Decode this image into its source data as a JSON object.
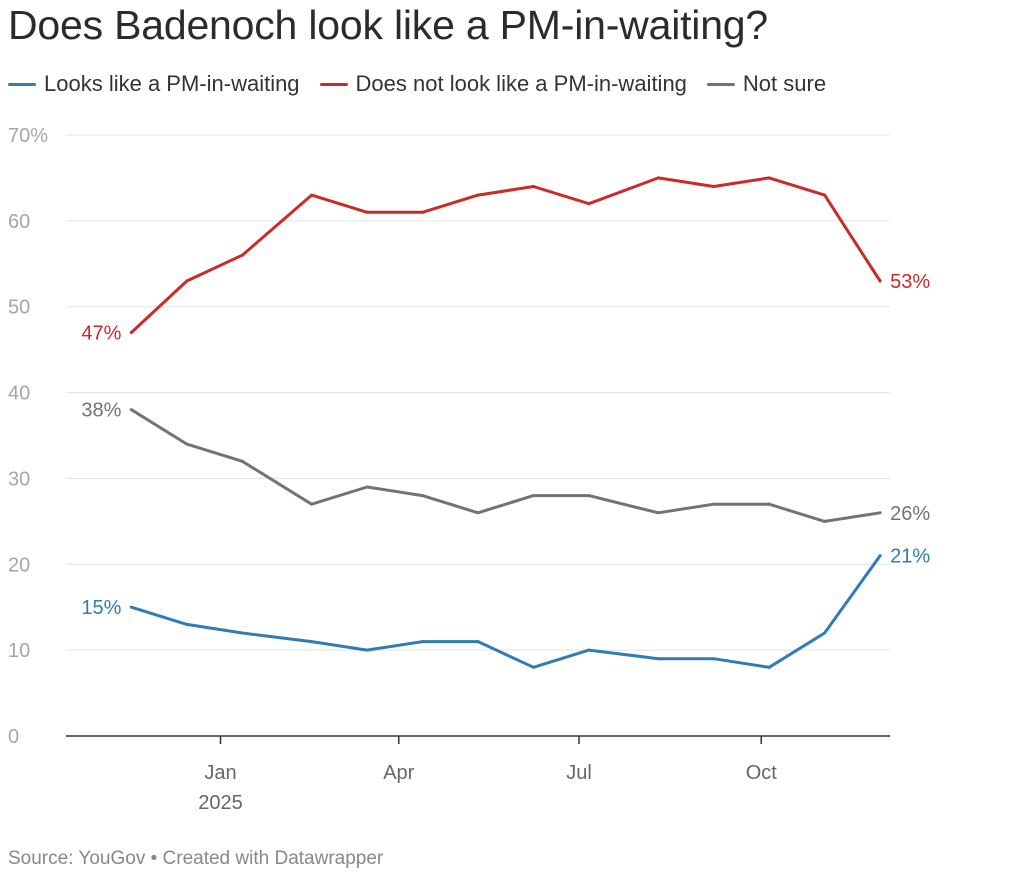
{
  "title": "Does Badenoch look like a PM-in-waiting?",
  "footer": "Source: YouGov • Created with Datawrapper",
  "chart_data": {
    "type": "line",
    "title": "Does Badenoch look like a PM-in-waiting?",
    "x": [
      "2024-11-17",
      "2024-12-15",
      "2025-01-12",
      "2025-02-16",
      "2025-03-16",
      "2025-04-13",
      "2025-05-11",
      "2025-06-08",
      "2025-07-06",
      "2025-08-10",
      "2025-09-07",
      "2025-10-05",
      "2025-11-02",
      "2025-11-30"
    ],
    "series": [
      {
        "name": "Looks like a PM-in-waiting",
        "color": "#2f7cb6",
        "values": [
          15,
          13,
          12,
          11,
          10,
          11,
          11,
          8,
          10,
          9,
          9,
          8,
          12,
          21
        ],
        "start_label": "15%",
        "end_label": "21%"
      },
      {
        "name": "Does not look like a PM-in-waiting",
        "color": "#cc2a2a",
        "values": [
          47,
          53,
          56,
          63,
          61,
          61,
          63,
          64,
          62,
          65,
          64,
          65,
          63,
          53
        ],
        "start_label": "47%",
        "end_label": "53%"
      },
      {
        "name": "Not sure",
        "color": "#737373",
        "values": [
          38,
          34,
          32,
          27,
          29,
          28,
          26,
          28,
          28,
          26,
          27,
          27,
          25,
          26
        ],
        "start_label": "38%",
        "end_label": "26%"
      }
    ],
    "ylim": [
      0,
      70
    ],
    "yticks": [
      {
        "value": 0,
        "label": "0"
      },
      {
        "value": 10,
        "label": "10"
      },
      {
        "value": 20,
        "label": "20"
      },
      {
        "value": 30,
        "label": "30"
      },
      {
        "value": 40,
        "label": "40"
      },
      {
        "value": 50,
        "label": "50"
      },
      {
        "value": 60,
        "label": "60"
      },
      {
        "value": 70,
        "label": "70%"
      }
    ],
    "xticks": [
      {
        "date": "2025-01-01",
        "label": "Jan",
        "sublabel": "2025"
      },
      {
        "date": "2025-04-01",
        "label": "Apr"
      },
      {
        "date": "2025-07-01",
        "label": "Jul"
      },
      {
        "date": "2025-10-01",
        "label": "Oct"
      }
    ],
    "xlim": [
      "2024-10-15",
      "2025-12-05"
    ],
    "grid": true,
    "legend": "top-left"
  }
}
